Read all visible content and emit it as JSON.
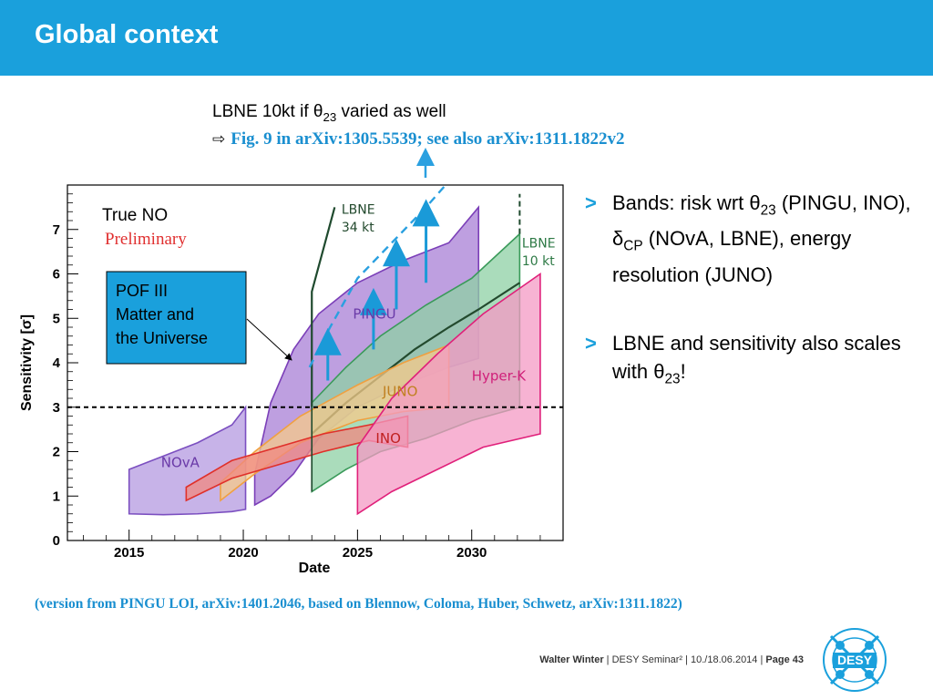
{
  "slide": {
    "title": "Global context",
    "note_line1": "LBNE 10kt if θ23 varied as well",
    "note_line2": "Fig. 9 in arXiv:1305.5539; see also arXiv:1311.1822v2",
    "bullets": [
      "Bands: risk wrt θ23 (PINGU, INO), δCP (NOvA, LBNE), energy resolution (JUNO)",
      "LBNE and sensitivity also scales with θ23!"
    ],
    "reference": "(version from PINGU LOI, arXiv:1401.2046, based on Blennow, Coloma, Huber, Schwetz, arXiv:1311.1822)",
    "footer": {
      "author": "Walter Winter",
      "event": "DESY Seminar²",
      "date": "10./18.06.2014",
      "page": "Page 43"
    },
    "logo_text": "DESY",
    "colors": {
      "header": "#1aa0dc",
      "accent_text": "#1a8fd0"
    }
  },
  "chart_data": {
    "type": "area",
    "xlabel": "Date",
    "ylabel": "Sensitivity [σ]",
    "xlim": [
      2012.3,
      2034.0
    ],
    "ylim": [
      0,
      8
    ],
    "xticks": [
      2015,
      2020,
      2025,
      2030
    ],
    "yticks": [
      0,
      1,
      2,
      3,
      4,
      5,
      6,
      7
    ],
    "threshold": 3,
    "annotations": {
      "true_no": "True NO",
      "preliminary": "Preliminary"
    },
    "callout": "POF III Matter and the Universe",
    "series": [
      {
        "name": "NOvA",
        "color": "#7b4fc0",
        "fill": "#b49ae0",
        "lower": [
          [
            2015,
            0.6
          ],
          [
            2016.5,
            0.58
          ],
          [
            2018,
            0.6
          ],
          [
            2019.5,
            0.65
          ],
          [
            2020.1,
            0.7
          ]
        ],
        "upper": [
          [
            2015,
            1.6
          ],
          [
            2016.5,
            1.9
          ],
          [
            2018,
            2.2
          ],
          [
            2019.5,
            2.6
          ],
          [
            2020.1,
            3.0
          ]
        ]
      },
      {
        "name": "PINGU",
        "color": "#7b3fb8",
        "fill": "#a87fd6",
        "lower": [
          [
            2020.5,
            0.8
          ],
          [
            2021.2,
            1.0
          ],
          [
            2022.2,
            1.5
          ],
          [
            2023.3,
            2.3
          ],
          [
            2025,
            3.0
          ],
          [
            2027,
            3.5
          ],
          [
            2029,
            3.9
          ],
          [
            2030.3,
            4.1
          ]
        ],
        "upper": [
          [
            2020.5,
            1.5
          ],
          [
            2021.2,
            3.1
          ],
          [
            2022.2,
            4.3
          ],
          [
            2023.3,
            5.1
          ],
          [
            2025,
            5.8
          ],
          [
            2027,
            6.3
          ],
          [
            2029,
            6.7
          ],
          [
            2030.3,
            7.5
          ]
        ]
      },
      {
        "name": "LBNE 10 kt",
        "color": "#3a9a5a",
        "fill": "#8ed0a4",
        "lower": [
          [
            2023,
            1.1
          ],
          [
            2024.5,
            1.6
          ],
          [
            2026,
            2.0
          ],
          [
            2028,
            2.3
          ],
          [
            2030,
            2.7
          ],
          [
            2032.1,
            3.0
          ]
        ],
        "upper": [
          [
            2023,
            3.1
          ],
          [
            2024.5,
            3.9
          ],
          [
            2026,
            4.6
          ],
          [
            2028,
            5.3
          ],
          [
            2030,
            5.9
          ],
          [
            2032.1,
            6.9
          ]
        ]
      },
      {
        "name": "LBNE 10 kt (central)",
        "color": "#234a2e",
        "fill": "none",
        "line": [
          [
            2023,
            2.4
          ],
          [
            2024.5,
            3.1
          ],
          [
            2026,
            3.7
          ],
          [
            2027.5,
            4.3
          ],
          [
            2029,
            4.8
          ],
          [
            2030.3,
            5.2
          ],
          [
            2032.1,
            5.8
          ]
        ]
      },
      {
        "name": "LBNE 34 kt",
        "color": "#1f4a2e",
        "fill": "none",
        "line": [
          [
            2023,
            3.0
          ],
          [
            2023,
            5.6
          ],
          [
            2024,
            7.5
          ]
        ]
      },
      {
        "name": "LBNE 34 kt (θ23 varied)",
        "color": "#2aa0e0",
        "fill": "none",
        "dashed": true,
        "line": [
          [
            2022.9,
            3.9
          ],
          [
            2023.8,
            4.8
          ],
          [
            2025,
            5.9
          ],
          [
            2026.5,
            6.7
          ],
          [
            2028,
            7.5
          ],
          [
            2029.2,
            8.2
          ]
        ]
      },
      {
        "name": "JUNO",
        "color": "#f0a040",
        "fill": "#f5c98a",
        "lower": [
          [
            2019,
            0.9
          ],
          [
            2020.5,
            1.5
          ],
          [
            2022.5,
            2.2
          ],
          [
            2025,
            2.7
          ],
          [
            2027,
            2.9
          ],
          [
            2029,
            3.0
          ]
        ],
        "upper": [
          [
            2019,
            1.3
          ],
          [
            2020.5,
            2.0
          ],
          [
            2022.5,
            2.8
          ],
          [
            2025,
            3.5
          ],
          [
            2027,
            4.0
          ],
          [
            2029,
            4.4
          ]
        ]
      },
      {
        "name": "INO",
        "color": "#e0302a",
        "fill": "#f08880",
        "lower": [
          [
            2017.5,
            0.9
          ],
          [
            2019.5,
            1.4
          ],
          [
            2021.5,
            1.7
          ],
          [
            2023.5,
            2.0
          ],
          [
            2025.5,
            2.25
          ],
          [
            2027.2,
            2.1
          ]
        ],
        "upper": [
          [
            2017.5,
            1.2
          ],
          [
            2019.5,
            1.8
          ],
          [
            2021.5,
            2.1
          ],
          [
            2023.5,
            2.4
          ],
          [
            2025.5,
            2.6
          ],
          [
            2027.2,
            2.8
          ]
        ]
      },
      {
        "name": "Hyper-K",
        "color": "#e0207a",
        "fill": "#f49ac4",
        "lower": [
          [
            2025,
            0.6
          ],
          [
            2026.5,
            1.1
          ],
          [
            2028.5,
            1.6
          ],
          [
            2030.5,
            2.1
          ],
          [
            2033,
            2.4
          ]
        ],
        "upper": [
          [
            2025,
            2.1
          ],
          [
            2026.5,
            3.2
          ],
          [
            2028.5,
            4.2
          ],
          [
            2030.5,
            5.1
          ],
          [
            2033,
            6.0
          ]
        ]
      }
    ],
    "up_arrows": [
      {
        "x": 2023.7,
        "y0": 3.6,
        "y1": 4.6
      },
      {
        "x": 2025.7,
        "y0": 4.3,
        "y1": 5.5
      },
      {
        "x": 2026.7,
        "y0": 5.2,
        "y1": 6.6
      },
      {
        "x": 2028,
        "y0": 5.8,
        "y1": 7.5
      }
    ]
  }
}
